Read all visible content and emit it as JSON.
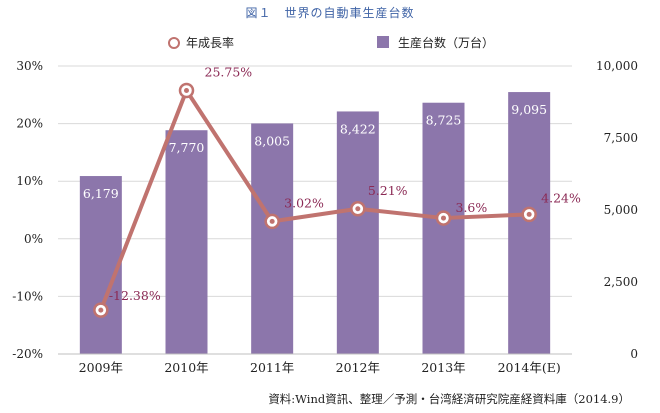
{
  "title": "図１　世界の自動車生産台数",
  "legend": {
    "line_label": "年成長率",
    "bar_label": "生産台数（万台）"
  },
  "source": "資料:Wind資訊、整理／予測・台湾経済研究院産経資料庫（2014.9）",
  "colors": {
    "bar": "#8c76ab",
    "line": "#c0736f",
    "line_label": "#8b2a55",
    "bar_label": "#ffffff"
  },
  "chart_data": {
    "type": "bar",
    "categories": [
      "2009年",
      "2010年",
      "2011年",
      "2012年",
      "2013年",
      "2014年(E)"
    ],
    "series": [
      {
        "name": "生産台数（万台）",
        "type": "bar",
        "axis": "right",
        "values": [
          6179,
          7770,
          8005,
          8422,
          8725,
          9095
        ],
        "labels": [
          "6,179",
          "7,770",
          "8,005",
          "8,422",
          "8,725",
          "9,095"
        ]
      },
      {
        "name": "年成長率",
        "type": "line",
        "axis": "left",
        "values": [
          -12.38,
          25.75,
          3.02,
          5.21,
          3.6,
          4.24
        ],
        "labels": [
          "-12.38%",
          "25.75%",
          "3.02%",
          "5.21%",
          "3.6%",
          "4.24%"
        ]
      }
    ],
    "left_axis": {
      "ylim": [
        -20,
        30
      ],
      "ticks": [
        -20,
        -10,
        0,
        10,
        20,
        30
      ],
      "tick_labels": [
        "-20%",
        "-10%",
        "0%",
        "10%",
        "20%",
        "30%"
      ]
    },
    "right_axis": {
      "ylim": [
        0,
        10000
      ],
      "ticks": [
        0,
        2500,
        5000,
        7500,
        10000
      ],
      "tick_labels": [
        "0",
        "2,500",
        "5,000",
        "7,500",
        "10,000"
      ]
    },
    "grid": true,
    "legend_position": "top"
  }
}
